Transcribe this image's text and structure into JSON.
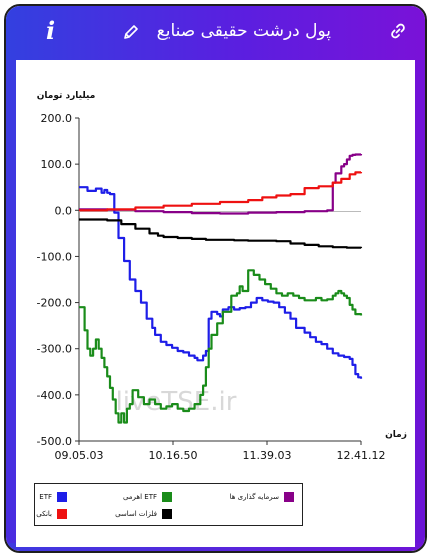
{
  "header": {
    "title": "پول درشت حقیقی صنایع",
    "icons": [
      "info-icon",
      "pencil-icon",
      "link-icon"
    ]
  },
  "watermark": "liveTSE.ir",
  "colors": {
    "header_start": "#3340e0",
    "header_end": "#7a12d8",
    "etf": "#1e1ee8",
    "leveraged_etf": "#1a8c1a",
    "capital": "#880088",
    "banks": "#ee1111",
    "metals": "#000000"
  },
  "chart_data": {
    "type": "line",
    "ylabel": "میلیارد تومان",
    "xlabel": "زمان",
    "ylim": [
      -500,
      200
    ],
    "yticks": [
      "200.0",
      "100.0",
      "0.0",
      "-100.0",
      "-200.0",
      "-300.0",
      "-400.0",
      "-500.0"
    ],
    "x_range": [
      "09.05.03",
      "12.41.12"
    ],
    "xticks": [
      "09.05.03",
      "10.16.50",
      "11.39.03",
      "12.41.12"
    ],
    "grid": false,
    "legend_position": "bottom-left",
    "series": [
      {
        "name": "ETF",
        "color": "#1e1ee8",
        "points": [
          [
            0,
            50
          ],
          [
            0.03,
            42
          ],
          [
            0.06,
            47
          ],
          [
            0.08,
            38
          ],
          [
            0.09,
            44
          ],
          [
            0.1,
            38
          ],
          [
            0.11,
            35
          ],
          [
            0.125,
            -5
          ],
          [
            0.14,
            -60
          ],
          [
            0.16,
            -110
          ],
          [
            0.18,
            -150
          ],
          [
            0.2,
            -175
          ],
          [
            0.22,
            -200
          ],
          [
            0.24,
            -235
          ],
          [
            0.26,
            -255
          ],
          [
            0.27,
            -270
          ],
          [
            0.29,
            -285
          ],
          [
            0.31,
            -292
          ],
          [
            0.33,
            -298
          ],
          [
            0.35,
            -305
          ],
          [
            0.37,
            -308
          ],
          [
            0.39,
            -315
          ],
          [
            0.41,
            -320
          ],
          [
            0.42,
            -325
          ],
          [
            0.44,
            -315
          ],
          [
            0.45,
            -305
          ],
          [
            0.46,
            -235
          ],
          [
            0.47,
            -220
          ],
          [
            0.49,
            -225
          ],
          [
            0.5,
            -230
          ],
          [
            0.51,
            -215
          ],
          [
            0.53,
            -210
          ],
          [
            0.55,
            -215
          ],
          [
            0.57,
            -212
          ],
          [
            0.59,
            -210
          ],
          [
            0.61,
            -200
          ],
          [
            0.63,
            -190
          ],
          [
            0.65,
            -195
          ],
          [
            0.67,
            -198
          ],
          [
            0.69,
            -200
          ],
          [
            0.71,
            -210
          ],
          [
            0.73,
            -222
          ],
          [
            0.75,
            -235
          ],
          [
            0.77,
            -255
          ],
          [
            0.8,
            -265
          ],
          [
            0.82,
            -275
          ],
          [
            0.84,
            -285
          ],
          [
            0.86,
            -290
          ],
          [
            0.88,
            -300
          ],
          [
            0.9,
            -310
          ],
          [
            0.92,
            -315
          ],
          [
            0.94,
            -318
          ],
          [
            0.96,
            -322
          ],
          [
            0.97,
            -335
          ],
          [
            0.98,
            -355
          ],
          [
            0.99,
            -362
          ],
          [
            1,
            -365
          ]
        ]
      },
      {
        "name": "ETF اهرمی",
        "color": "#1a8c1a",
        "points": [
          [
            0,
            -210
          ],
          [
            0.02,
            -260
          ],
          [
            0.03,
            -300
          ],
          [
            0.04,
            -315
          ],
          [
            0.05,
            -300
          ],
          [
            0.06,
            -280
          ],
          [
            0.07,
            -300
          ],
          [
            0.08,
            -320
          ],
          [
            0.09,
            -340
          ],
          [
            0.1,
            -360
          ],
          [
            0.11,
            -385
          ],
          [
            0.12,
            -410
          ],
          [
            0.13,
            -440
          ],
          [
            0.14,
            -460
          ],
          [
            0.15,
            -440
          ],
          [
            0.16,
            -460
          ],
          [
            0.17,
            -430
          ],
          [
            0.18,
            -420
          ],
          [
            0.19,
            -390
          ],
          [
            0.21,
            -405
          ],
          [
            0.23,
            -420
          ],
          [
            0.25,
            -410
          ],
          [
            0.27,
            -420
          ],
          [
            0.29,
            -430
          ],
          [
            0.31,
            -425
          ],
          [
            0.33,
            -420
          ],
          [
            0.35,
            -430
          ],
          [
            0.37,
            -435
          ],
          [
            0.39,
            -430
          ],
          [
            0.41,
            -420
          ],
          [
            0.43,
            -400
          ],
          [
            0.44,
            -380
          ],
          [
            0.45,
            -340
          ],
          [
            0.46,
            -300
          ],
          [
            0.47,
            -270
          ],
          [
            0.49,
            -245
          ],
          [
            0.51,
            -220
          ],
          [
            0.53,
            -220
          ],
          [
            0.54,
            -185
          ],
          [
            0.56,
            -180
          ],
          [
            0.57,
            -165
          ],
          [
            0.58,
            -175
          ],
          [
            0.59,
            -175
          ],
          [
            0.6,
            -130
          ],
          [
            0.62,
            -140
          ],
          [
            0.64,
            -150
          ],
          [
            0.66,
            -160
          ],
          [
            0.68,
            -170
          ],
          [
            0.7,
            -180
          ],
          [
            0.72,
            -185
          ],
          [
            0.74,
            -180
          ],
          [
            0.76,
            -185
          ],
          [
            0.78,
            -190
          ],
          [
            0.8,
            -195
          ],
          [
            0.82,
            -195
          ],
          [
            0.84,
            -190
          ],
          [
            0.86,
            -195
          ],
          [
            0.88,
            -193
          ],
          [
            0.9,
            -185
          ],
          [
            0.91,
            -180
          ],
          [
            0.92,
            -175
          ],
          [
            0.93,
            -180
          ],
          [
            0.94,
            -185
          ],
          [
            0.95,
            -190
          ],
          [
            0.96,
            -205
          ],
          [
            0.97,
            -215
          ],
          [
            0.98,
            -225
          ],
          [
            1,
            -228
          ]
        ]
      },
      {
        "name": "سرمایه گذاری ها",
        "color": "#880088",
        "points": [
          [
            0,
            2
          ],
          [
            0.1,
            1
          ],
          [
            0.2,
            -2
          ],
          [
            0.3,
            -4
          ],
          [
            0.4,
            -6
          ],
          [
            0.5,
            -7
          ],
          [
            0.6,
            -5
          ],
          [
            0.7,
            -4
          ],
          [
            0.8,
            -2
          ],
          [
            0.88,
            0
          ],
          [
            0.89,
            0
          ],
          [
            0.9,
            60
          ],
          [
            0.91,
            80
          ],
          [
            0.93,
            95
          ],
          [
            0.94,
            100
          ],
          [
            0.95,
            110
          ],
          [
            0.96,
            118
          ],
          [
            0.97,
            120
          ],
          [
            0.98,
            121
          ],
          [
            1,
            122
          ]
        ]
      },
      {
        "name": "بانکی",
        "color": "#ee1111",
        "points": [
          [
            0,
            0
          ],
          [
            0.1,
            2
          ],
          [
            0.2,
            6
          ],
          [
            0.3,
            10
          ],
          [
            0.4,
            14
          ],
          [
            0.5,
            18
          ],
          [
            0.6,
            22
          ],
          [
            0.65,
            28
          ],
          [
            0.7,
            32
          ],
          [
            0.75,
            35
          ],
          [
            0.8,
            48
          ],
          [
            0.85,
            52
          ],
          [
            0.9,
            60
          ],
          [
            0.93,
            68
          ],
          [
            0.96,
            78
          ],
          [
            0.98,
            82
          ],
          [
            1,
            83
          ]
        ]
      },
      {
        "name": "فلزات اساسی",
        "color": "#000000",
        "points": [
          [
            0,
            -20
          ],
          [
            0.05,
            -20
          ],
          [
            0.1,
            -22
          ],
          [
            0.15,
            -30
          ],
          [
            0.2,
            -40
          ],
          [
            0.25,
            -50
          ],
          [
            0.28,
            -55
          ],
          [
            0.3,
            -58
          ],
          [
            0.35,
            -60
          ],
          [
            0.4,
            -62
          ],
          [
            0.45,
            -64
          ],
          [
            0.5,
            -64
          ],
          [
            0.55,
            -65
          ],
          [
            0.6,
            -66
          ],
          [
            0.65,
            -66
          ],
          [
            0.7,
            -67
          ],
          [
            0.75,
            -72
          ],
          [
            0.8,
            -75
          ],
          [
            0.85,
            -78
          ],
          [
            0.9,
            -80
          ],
          [
            0.95,
            -81
          ],
          [
            1,
            -82
          ]
        ]
      }
    ]
  }
}
